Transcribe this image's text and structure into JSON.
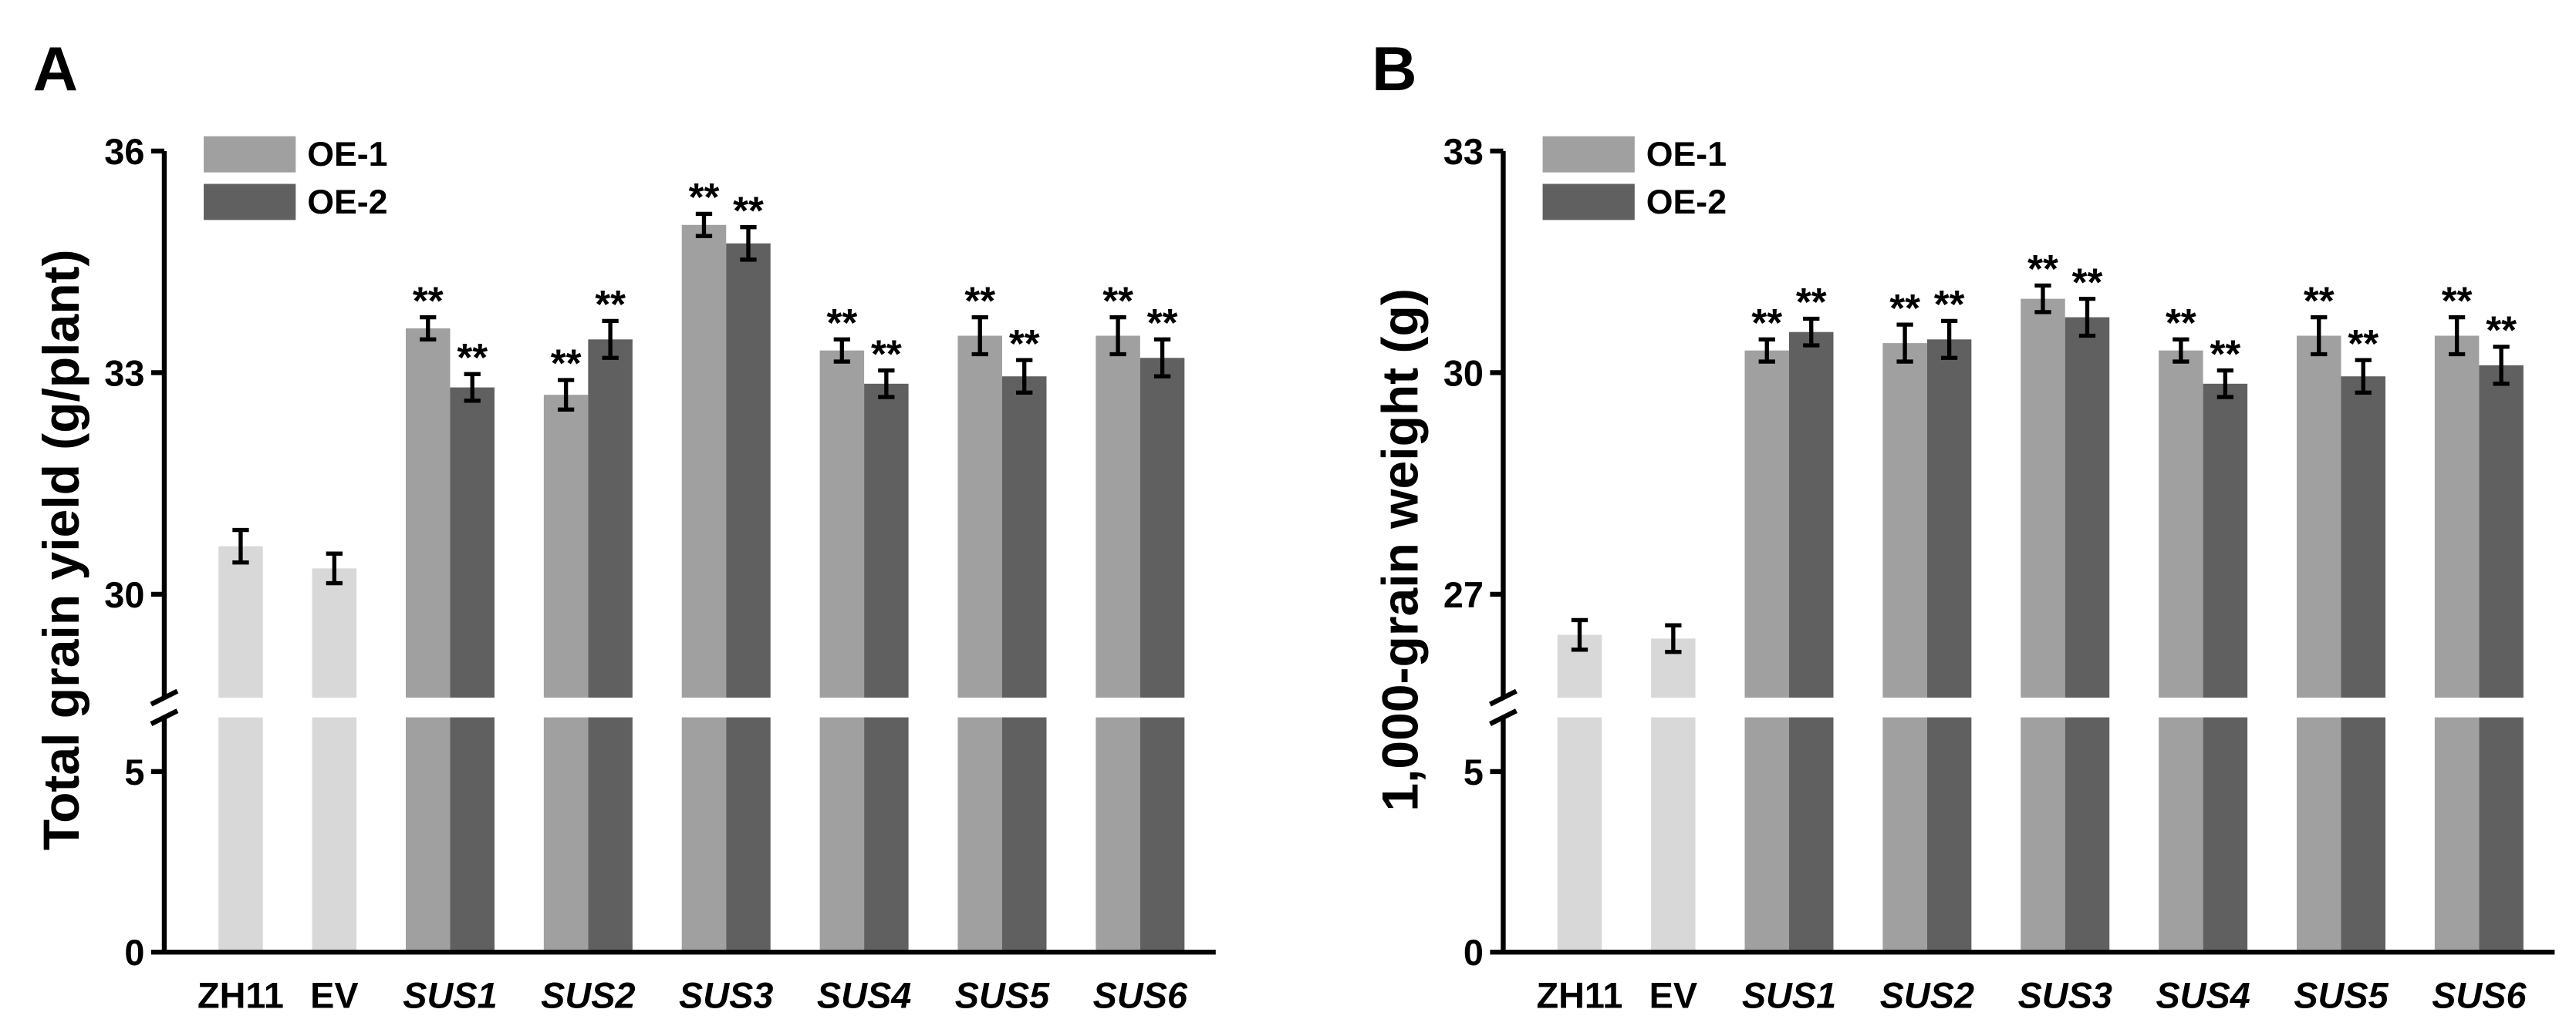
{
  "chart_data": [
    {
      "type": "bar",
      "panel_label": "A",
      "ylabel": "Total grain yield (g/plant)",
      "categories": [
        "ZH11",
        "EV",
        "SUS1",
        "SUS2",
        "SUS3",
        "SUS4",
        "SUS5",
        "SUS6"
      ],
      "category_italic": [
        false,
        false,
        true,
        true,
        true,
        true,
        true,
        true
      ],
      "ylim": [
        0,
        36
      ],
      "ybreak": [
        6.5,
        28.6
      ],
      "yticks": [
        0,
        5,
        30,
        33,
        36
      ],
      "series": [
        {
          "color": "#d8d8d8",
          "values": [
            30.65,
            30.35,
            null,
            null,
            null,
            null,
            null,
            null
          ],
          "errors": [
            0.22,
            0.2,
            null,
            null,
            null,
            null,
            null,
            null
          ]
        },
        {
          "name": "OE-1",
          "color": "#a0a0a0",
          "values": [
            null,
            null,
            33.6,
            32.7,
            35.0,
            33.3,
            33.5,
            33.5
          ],
          "errors": [
            null,
            null,
            0.15,
            0.2,
            0.15,
            0.15,
            0.25,
            0.25
          ],
          "annotations": [
            null,
            null,
            "**",
            "**",
            "**",
            "**",
            "**",
            "**"
          ]
        },
        {
          "name": "OE-2",
          "color": "#606060",
          "values": [
            null,
            null,
            32.8,
            33.45,
            34.75,
            32.85,
            32.95,
            33.2
          ],
          "errors": [
            null,
            null,
            0.18,
            0.25,
            0.22,
            0.18,
            0.22,
            0.25
          ],
          "annotations": [
            null,
            null,
            "**",
            "**",
            "**",
            "**",
            "**",
            "**"
          ]
        }
      ]
    },
    {
      "type": "bar",
      "panel_label": "B",
      "ylabel": "1,000-grain weight (g)",
      "categories": [
        "ZH11",
        "EV",
        "SUS1",
        "SUS2",
        "SUS3",
        "SUS4",
        "SUS5",
        "SUS6"
      ],
      "category_italic": [
        false,
        false,
        true,
        true,
        true,
        true,
        true,
        true
      ],
      "ylim": [
        0,
        33
      ],
      "ybreak": [
        6.5,
        25.6
      ],
      "yticks": [
        0,
        5,
        27,
        30,
        33
      ],
      "series": [
        {
          "color": "#d8d8d8",
          "values": [
            26.45,
            26.4,
            null,
            null,
            null,
            null,
            null,
            null
          ],
          "errors": [
            0.2,
            0.18,
            null,
            null,
            null,
            null,
            null,
            null
          ]
        },
        {
          "name": "OE-1",
          "color": "#a0a0a0",
          "values": [
            null,
            null,
            30.3,
            30.4,
            31.0,
            30.3,
            30.5,
            30.5
          ],
          "errors": [
            null,
            null,
            0.15,
            0.25,
            0.18,
            0.15,
            0.25,
            0.25
          ],
          "annotations": [
            null,
            null,
            "**",
            "**",
            "**",
            "**",
            "**",
            "**"
          ]
        },
        {
          "name": "OE-2",
          "color": "#606060",
          "values": [
            null,
            null,
            30.55,
            30.45,
            30.75,
            29.85,
            29.95,
            30.1
          ],
          "errors": [
            null,
            null,
            0.18,
            0.25,
            0.25,
            0.18,
            0.22,
            0.25
          ],
          "annotations": [
            null,
            null,
            "**",
            "**",
            "**",
            "**",
            "**",
            "**"
          ]
        }
      ]
    }
  ]
}
